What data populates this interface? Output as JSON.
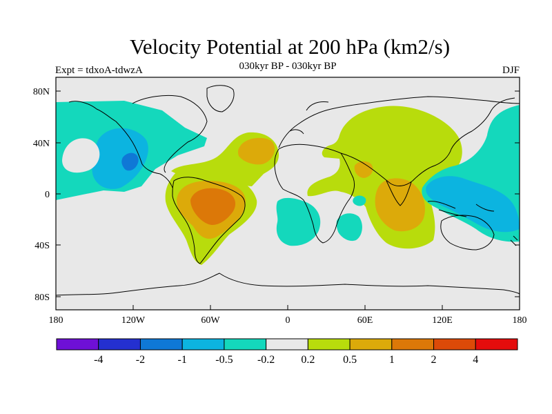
{
  "header": {
    "title": "Velocity Potential at 200 hPa (km2/s)",
    "left_label": "Expt = tdxoA-tdwzA",
    "center_label": "030kyr BP - 030kyr BP",
    "right_label": "DJF"
  },
  "axes": {
    "y_ticks": [
      "80N",
      "40N",
      "0",
      "40S",
      "80S"
    ],
    "x_ticks": [
      "180",
      "120W",
      "60W",
      "0",
      "60E",
      "120E",
      "180"
    ]
  },
  "colorbar": {
    "colors": [
      "#6e10d6",
      "#2430d0",
      "#0f78d6",
      "#0cb4e0",
      "#14d8bc",
      "#e8e8e8",
      "#b8dc0c",
      "#dcaa0a",
      "#dc7808",
      "#dc4a08",
      "#e40c0c"
    ],
    "labels": [
      "-4",
      "-2",
      "-1",
      "-0.5",
      "-0.2",
      "0.2",
      "0.5",
      "1",
      "2",
      "4"
    ]
  },
  "map_colors": {
    "background": "#e8e8e8",
    "neg_weak": "#14d8bc",
    "neg_mid": "#0cb4e0",
    "neg_strong": "#0f78d6",
    "pos_weak": "#b8dc0c",
    "pos_mid": "#dcaa0a",
    "pos_strong": "#dc7808"
  }
}
